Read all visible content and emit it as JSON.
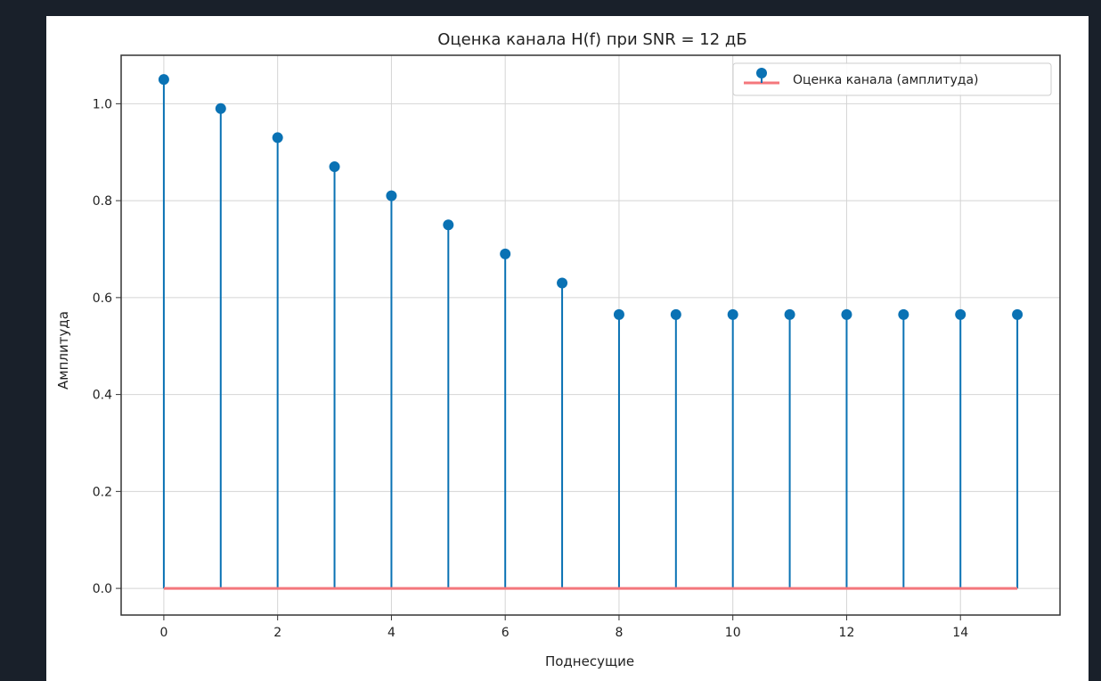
{
  "chart_data": {
    "type": "stem",
    "title": "Оценка канала H(f) при SNR = 12 дБ",
    "xlabel": "Поднесущие",
    "ylabel": "Амплитуда",
    "xlim": [
      -0.75,
      15.75
    ],
    "ylim": [
      -0.055,
      1.1
    ],
    "xticks": [
      0,
      2,
      4,
      6,
      8,
      10,
      12,
      14
    ],
    "xtick_labels": [
      "0",
      "2",
      "4",
      "6",
      "8",
      "10",
      "12",
      "14"
    ],
    "yticks": [
      0.0,
      0.2,
      0.4,
      0.6,
      0.8,
      1.0
    ],
    "ytick_labels": [
      "0.0",
      "0.2",
      "0.4",
      "0.6",
      "0.8",
      "1.0"
    ],
    "grid": true,
    "legend_position": "top-right",
    "baseline": 0.0,
    "series": [
      {
        "name": "Оценка канала (амплитуда)",
        "color": "#0a72b4",
        "baseline_color": "#f4777c",
        "x": [
          0,
          1,
          2,
          3,
          4,
          5,
          6,
          7,
          8,
          9,
          10,
          11,
          12,
          13,
          14,
          15
        ],
        "values": [
          1.05,
          0.99,
          0.93,
          0.87,
          0.81,
          0.75,
          0.69,
          0.63,
          0.565,
          0.565,
          0.565,
          0.565,
          0.565,
          0.565,
          0.565,
          0.565
        ]
      }
    ]
  }
}
